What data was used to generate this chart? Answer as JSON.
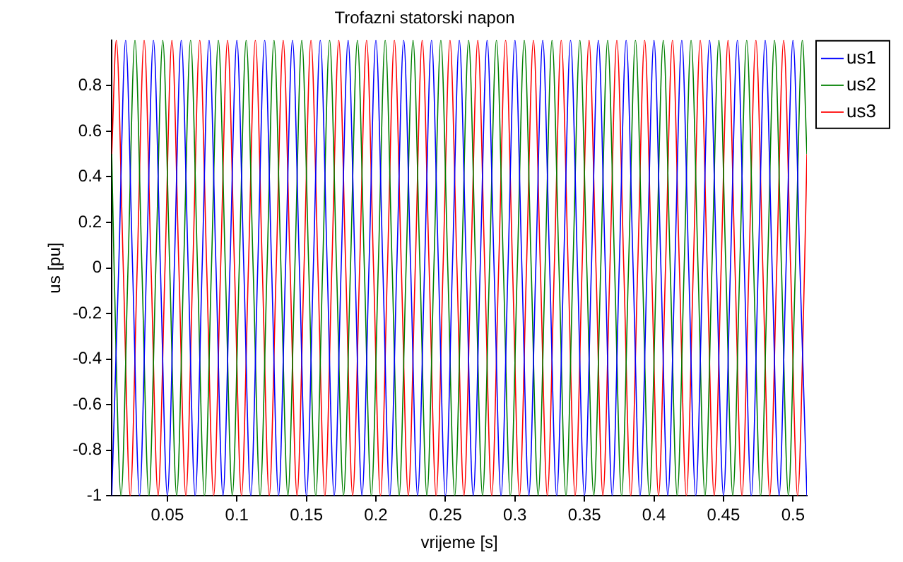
{
  "chart_data": {
    "type": "line",
    "title": "Trofazni statorski napon",
    "xlabel": "vrijeme [s]",
    "ylabel": "us [pu]",
    "xlim": [
      0.01,
      0.51
    ],
    "xticks": [
      0.05,
      0.1,
      0.15,
      0.2,
      0.25,
      0.3,
      0.35,
      0.4,
      0.45,
      0.5
    ],
    "ylim": [
      -1,
      1
    ],
    "yticks": [
      -1,
      -0.8,
      -0.6,
      -0.4,
      -0.2,
      0,
      0.2,
      0.4,
      0.6,
      0.8
    ],
    "grid": false,
    "legend": "top right",
    "marker": "none",
    "line_style": "solid",
    "series": [
      {
        "name": "us1",
        "color": "#0000ff",
        "x": [
          0.01,
          0.015,
          0.02,
          0.025,
          0.03,
          0.035,
          0.04,
          0.045,
          0.05,
          0.055,
          0.06,
          0.065,
          0.07,
          0.075,
          0.08,
          0.085,
          0.09,
          0.095,
          0.1,
          0.105,
          0.11,
          0.115,
          0.12,
          0.125,
          0.13,
          0.135,
          0.14,
          0.145,
          0.15,
          0.155,
          0.16,
          0.165,
          0.17,
          0.175,
          0.18,
          0.185,
          0.19,
          0.195,
          0.2,
          0.205,
          0.21,
          0.215,
          0.22,
          0.225,
          0.23,
          0.235,
          0.24,
          0.245,
          0.25,
          0.255,
          0.26,
          0.265,
          0.27,
          0.275,
          0.28,
          0.285,
          0.29,
          0.295,
          0.3,
          0.305,
          0.31,
          0.315,
          0.32,
          0.325,
          0.33,
          0.335,
          0.34,
          0.345,
          0.35,
          0.355,
          0.36,
          0.365,
          0.37,
          0.375,
          0.38,
          0.385,
          0.39,
          0.395,
          0.4,
          0.405,
          0.41,
          0.415,
          0.42,
          0.425,
          0.43,
          0.435,
          0.44,
          0.445,
          0.45,
          0.455,
          0.46,
          0.465,
          0.47,
          0.475,
          0.48,
          0.485,
          0.49,
          0.495,
          0.5,
          0.505,
          0.51
        ],
        "values": [
          -1,
          0,
          1,
          0,
          -1,
          0,
          1,
          0,
          -1,
          0,
          1,
          0,
          -1,
          0,
          1,
          0,
          -1,
          0,
          1,
          0,
          -1,
          0,
          1,
          0,
          -1,
          0,
          1,
          0,
          -1,
          0,
          1,
          0,
          -1,
          0,
          1,
          0,
          -1,
          0,
          1,
          0,
          -1,
          0,
          1,
          0,
          -1,
          0,
          1,
          0,
          -1,
          0,
          1,
          0,
          -1,
          0,
          1,
          0,
          -1,
          0,
          1,
          0,
          -1,
          0,
          1,
          0,
          -1,
          0,
          1,
          0,
          -1,
          0,
          1,
          0,
          -1,
          0,
          1,
          0,
          -1,
          0,
          1,
          0,
          -1,
          0,
          1,
          0,
          -1,
          0,
          1,
          0,
          -1,
          0,
          1,
          0,
          -1,
          0,
          1,
          0,
          -1,
          0,
          1,
          0,
          -1
        ]
      },
      {
        "name": "us2",
        "color": "#008000",
        "x": [
          0.01,
          0.0117,
          0.0167,
          0.0217,
          0.0267,
          0.0317,
          0.0367,
          0.0417,
          0.0467,
          0.0517,
          0.0567,
          0.0617,
          0.0667,
          0.0717,
          0.0767,
          0.0817,
          0.0867,
          0.0917,
          0.0967,
          0.1017,
          0.1067,
          0.1117,
          0.1167,
          0.1217,
          0.1267,
          0.1317,
          0.1367,
          0.1417,
          0.1467,
          0.1517,
          0.1567,
          0.1617,
          0.1667,
          0.1717,
          0.1767,
          0.1817,
          0.1867,
          0.1917,
          0.1967,
          0.2017,
          0.2067,
          0.2117,
          0.2167,
          0.2217,
          0.2267,
          0.2317,
          0.2367,
          0.2417,
          0.2467,
          0.2517,
          0.2567,
          0.2617,
          0.2667,
          0.2717,
          0.2767,
          0.2817,
          0.2867,
          0.2917,
          0.2967,
          0.3017,
          0.3067,
          0.3117,
          0.3167,
          0.3217,
          0.3267,
          0.3317,
          0.3367,
          0.3417,
          0.3467,
          0.3517,
          0.3567,
          0.3617,
          0.3667,
          0.3717,
          0.3767,
          0.3817,
          0.3867,
          0.3917,
          0.3967,
          0.4017,
          0.4067,
          0.4117,
          0.4167,
          0.4217,
          0.4267,
          0.4317,
          0.4367,
          0.4417,
          0.4467,
          0.4517,
          0.4567,
          0.4617,
          0.4667,
          0.4717,
          0.4767,
          0.4817,
          0.4867,
          0.4917,
          0.4967,
          0.5017,
          0.5067,
          0.51
        ],
        "values": [
          0.5,
          0,
          -1,
          0,
          1,
          0,
          -1,
          0,
          1,
          0,
          -1,
          0,
          1,
          0,
          -1,
          0,
          1,
          0,
          -1,
          0,
          1,
          0,
          -1,
          0,
          1,
          0,
          -1,
          0,
          1,
          0,
          -1,
          0,
          1,
          0,
          -1,
          0,
          1,
          0,
          -1,
          0,
          1,
          0,
          -1,
          0,
          1,
          0,
          -1,
          0,
          1,
          0,
          -1,
          0,
          1,
          0,
          -1,
          0,
          1,
          0,
          -1,
          0,
          1,
          0,
          -1,
          0,
          1,
          0,
          -1,
          0,
          1,
          0,
          -1,
          0,
          1,
          0,
          -1,
          0,
          1,
          0,
          -1,
          0,
          1,
          0,
          -1,
          0,
          1,
          0,
          -1,
          0,
          1,
          0,
          -1,
          0,
          1,
          0,
          -1,
          0,
          1,
          0,
          -1,
          0,
          1,
          0.5
        ]
      },
      {
        "name": "us3",
        "color": "#ff0000",
        "x": [
          0.01,
          0.0133,
          0.0183,
          0.0233,
          0.0283,
          0.0333,
          0.0383,
          0.0433,
          0.0483,
          0.0533,
          0.0583,
          0.0633,
          0.0683,
          0.0733,
          0.0783,
          0.0833,
          0.0883,
          0.0933,
          0.0983,
          0.1033,
          0.1083,
          0.1133,
          0.1183,
          0.1233,
          0.1283,
          0.1333,
          0.1383,
          0.1433,
          0.1483,
          0.1533,
          0.1583,
          0.1633,
          0.1683,
          0.1733,
          0.1783,
          0.1833,
          0.1883,
          0.1933,
          0.1983,
          0.2033,
          0.2083,
          0.2133,
          0.2183,
          0.2233,
          0.2283,
          0.2333,
          0.2383,
          0.2433,
          0.2483,
          0.2533,
          0.2583,
          0.2633,
          0.2683,
          0.2733,
          0.2783,
          0.2833,
          0.2883,
          0.2933,
          0.2983,
          0.3033,
          0.3083,
          0.3133,
          0.3183,
          0.3233,
          0.3283,
          0.3333,
          0.3383,
          0.3433,
          0.3483,
          0.3533,
          0.3583,
          0.3633,
          0.3683,
          0.3733,
          0.3783,
          0.3833,
          0.3883,
          0.3933,
          0.3983,
          0.4033,
          0.4083,
          0.4133,
          0.4183,
          0.4233,
          0.4283,
          0.4333,
          0.4383,
          0.4433,
          0.4483,
          0.4533,
          0.4583,
          0.4633,
          0.4683,
          0.4733,
          0.4783,
          0.4833,
          0.4883,
          0.4933,
          0.4983,
          0.5033,
          0.5083,
          0.51
        ],
        "values": [
          0.5,
          1,
          0,
          -1,
          0,
          1,
          0,
          -1,
          0,
          1,
          0,
          -1,
          0,
          1,
          0,
          -1,
          0,
          1,
          0,
          -1,
          0,
          1,
          0,
          -1,
          0,
          1,
          0,
          -1,
          0,
          1,
          0,
          -1,
          0,
          1,
          0,
          -1,
          0,
          1,
          0,
          -1,
          0,
          1,
          0,
          -1,
          0,
          1,
          0,
          -1,
          0,
          1,
          0,
          -1,
          0,
          1,
          0,
          -1,
          0,
          1,
          0,
          -1,
          0,
          1,
          0,
          -1,
          0,
          1,
          0,
          -1,
          0,
          1,
          0,
          -1,
          0,
          1,
          0,
          -1,
          0,
          1,
          0,
          -1,
          0,
          1,
          0,
          -1,
          0,
          1,
          0,
          -1,
          0,
          1,
          0,
          -1,
          0,
          1,
          0,
          -1,
          0,
          1,
          0,
          -1,
          0,
          0.5
        ]
      }
    ]
  }
}
